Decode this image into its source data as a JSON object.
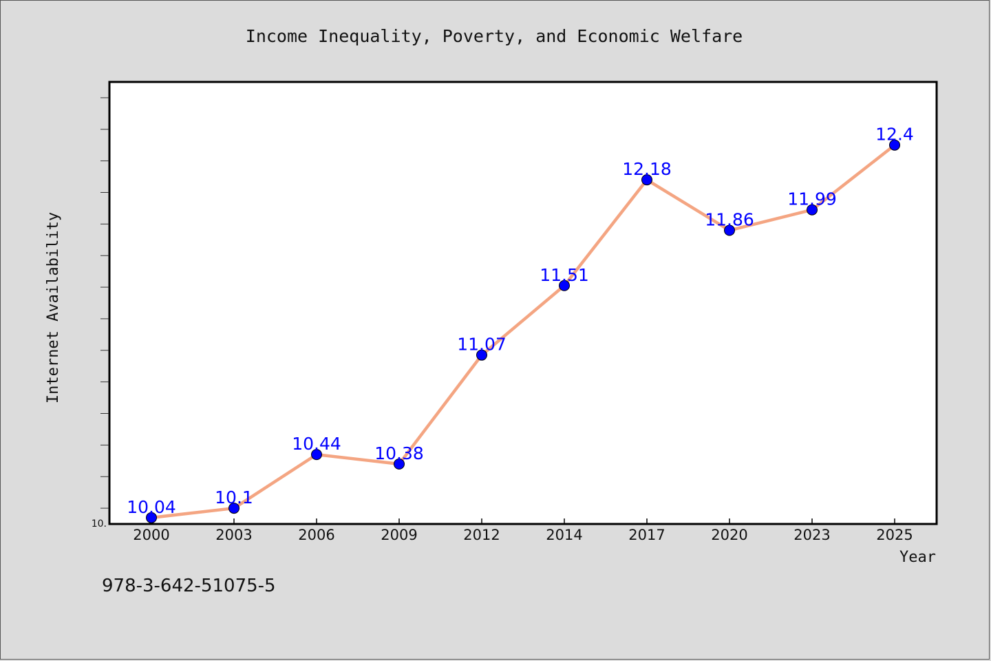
{
  "chart_data": {
    "type": "line",
    "title": "Income Inequality, Poverty, and Economic Welfare",
    "xlabel": "Year",
    "ylabel": "Internet Availability",
    "categories": [
      "2000",
      "2003",
      "2006",
      "2009",
      "2012",
      "2014",
      "2017",
      "2020",
      "2023",
      "2025"
    ],
    "series": [
      {
        "values": [
          10.04,
          10.1,
          10.44,
          10.38,
          11.07,
          11.51,
          12.18,
          11.86,
          11.99,
          12.4
        ]
      }
    ],
    "data_labels": [
      "10.04",
      "10.1",
      "10.44",
      "10.38",
      "11.07",
      "11.51",
      "12.18",
      "11.86",
      "11.99",
      "12.4"
    ],
    "y_tick_label": "10.",
    "ylim": [
      10.0,
      12.8
    ],
    "grid": false,
    "line_color": "#f4a582",
    "marker_color": "#0000ff"
  },
  "footer": {
    "isbn": "978-3-642-51075-5"
  }
}
